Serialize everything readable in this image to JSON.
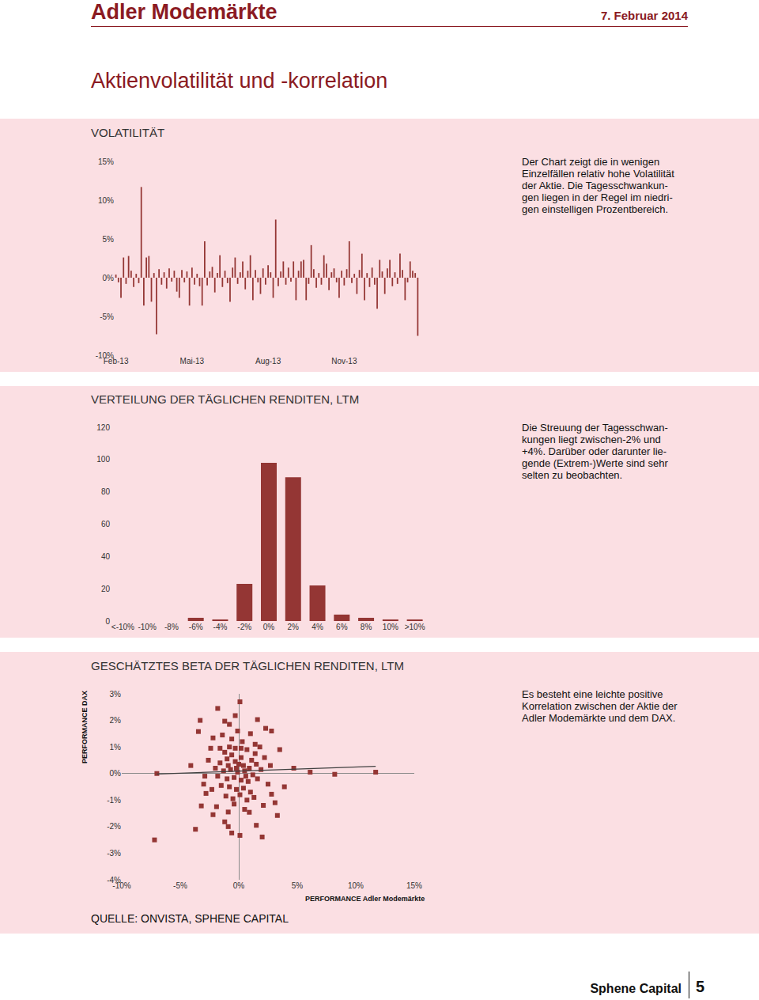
{
  "header": {
    "company": "Adler Modemärkte",
    "date": "7. Februar 2014"
  },
  "page_title": "Aktienvolatilität und -korrelation",
  "chart_data": [
    {
      "type": "bar",
      "title": "VOLATILITÄT",
      "annotation": [
        "Der Chart zeigt die in wenigen",
        "Einzelfällen relativ hohe Volatilität",
        "der Aktie. Die Tagesschwankun-",
        "gen liegen in der Regel im niedri-",
        "gen einstelligen Prozentbereich."
      ],
      "categories": [
        "Feb-13",
        null,
        null,
        null,
        null,
        null,
        null,
        null,
        null,
        null,
        null,
        null,
        null,
        null,
        null,
        null,
        null,
        null,
        null,
        null,
        null,
        null,
        null,
        null,
        null,
        null,
        null,
        null,
        null,
        null,
        "Mai-13",
        null,
        null,
        null,
        null,
        null,
        null,
        null,
        null,
        null,
        null,
        null,
        null,
        null,
        null,
        null,
        null,
        null,
        null,
        null,
        null,
        null,
        null,
        null,
        null,
        null,
        null,
        null,
        null,
        null,
        "Aug-13",
        null,
        null,
        null,
        null,
        null,
        null,
        null,
        null,
        null,
        null,
        null,
        null,
        null,
        null,
        null,
        null,
        null,
        null,
        null,
        null,
        null,
        null,
        null,
        null,
        null,
        null,
        null,
        null,
        null,
        "Nov-13",
        null,
        null,
        null,
        null,
        null,
        null,
        null,
        null,
        null,
        null,
        null,
        null,
        null,
        null,
        null,
        null,
        null,
        null,
        null,
        null,
        null,
        null,
        null,
        null,
        null,
        null,
        null,
        null,
        null
      ],
      "values": [
        0.4,
        -0.6,
        -2.6,
        2.6,
        -0.8,
        2.8,
        0.9,
        -1.2,
        0.5,
        -0.7,
        11.7,
        -3.6,
        2.6,
        2.8,
        -3.1,
        0.6,
        -7.3,
        1.1,
        -0.9,
        0.7,
        -1.4,
        1.2,
        -0.5,
        0.9,
        -1.8,
        -2.6,
        1.0,
        -0.6,
        0.8,
        -3.6,
        1.3,
        -0.9,
        0.5,
        -1.1,
        -3.6,
        4.7,
        -1.0,
        0.8,
        1.4,
        -1.9,
        0.6,
        2.9,
        -1.2,
        0.9,
        -0.7,
        -3.1,
        1.3,
        2.6,
        -0.8,
        0.7,
        2.1,
        -1.5,
        0.9,
        2.9,
        -2.9,
        1.0,
        -0.6,
        -2.1,
        1.2,
        -0.9,
        1.6,
        0.7,
        -2.6,
        7.5,
        -1.1,
        0.8,
        2.1,
        -0.9,
        1.3,
        -0.5,
        2.1,
        -2.9,
        0.9,
        2.1,
        2.3,
        -2.9,
        -0.8,
        4.2,
        1.1,
        -1.3,
        0.6,
        -0.9,
        2.9,
        1.8,
        -1.6,
        0.7,
        1.2,
        -0.6,
        -2.6,
        0.9,
        -1.0,
        1.1,
        4.7,
        -0.7,
        0.5,
        -2.1,
        1.0,
        3.1,
        -2.9,
        0.6,
        -1.2,
        1.3,
        -0.9,
        -4.0,
        2.3,
        0.8,
        -2.1,
        1.2,
        2.3,
        -1.1,
        0.7,
        -0.8,
        3.1,
        1.0,
        -2.9,
        -0.6,
        2.1,
        0.9,
        0.6,
        -7.5
      ],
      "color": "#943634",
      "ylim": [
        -10,
        15
      ],
      "yticks": [
        {
          "value": -10,
          "label": "-10%"
        },
        {
          "value": -5,
          "label": "-5%"
        },
        {
          "value": 0,
          "label": "0%"
        },
        {
          "value": 5,
          "label": "5%"
        },
        {
          "value": 10,
          "label": "10%"
        },
        {
          "value": 15,
          "label": "15%"
        }
      ],
      "grid": false
    },
    {
      "type": "bar",
      "title": "VERTEILUNG DER TÄGLICHEN RENDITEN, LTM",
      "annotation": [
        "Die Streuung der Tagesschwan-",
        "kungen liegt zwischen-2% und",
        "+4%. Darüber oder darunter lie-",
        "gende (Extrem-)Werte sind sehr",
        "selten zu beobachten."
      ],
      "categories": [
        "<-10%",
        "-10%",
        "-8%",
        "-6%",
        "-4%",
        "-2%",
        "0%",
        "2%",
        "4%",
        "6%",
        "8%",
        "10%",
        ">10%"
      ],
      "values": [
        0,
        0,
        0,
        2,
        1,
        23,
        98,
        89,
        22,
        4,
        2,
        1,
        1
      ],
      "color": "#943634",
      "ylim": [
        0,
        120
      ],
      "yticks": [
        0,
        20,
        40,
        60,
        80,
        100,
        120
      ],
      "grid": false
    },
    {
      "type": "scatter",
      "title": "GESCHÄTZTES BETA DER TÄGLICHEN RENDITEN, LTM",
      "annotation": [
        "Es besteht eine leichte positive",
        "Korrelation zwischen der Aktie der",
        "Adler Modemärkte und dem DAX."
      ],
      "x_label": "PERFORMANCE Adler Modemärkte",
      "y_label": "PERFORMANCE DAX",
      "xlim": [
        -10,
        15
      ],
      "xticks": [
        {
          "value": -10,
          "label": "-10%"
        },
        {
          "value": -5,
          "label": "-5%"
        },
        {
          "value": 0,
          "label": "0%"
        },
        {
          "value": 5,
          "label": "5%"
        },
        {
          "value": 10,
          "label": "10%"
        },
        {
          "value": 15,
          "label": "15%"
        }
      ],
      "ylim": [
        -4,
        3
      ],
      "yticks": [
        {
          "value": -4,
          "label": "-4%"
        },
        {
          "value": -3,
          "label": "-3%"
        },
        {
          "value": -2,
          "label": "-2%"
        },
        {
          "value": -1,
          "label": "-1%"
        },
        {
          "value": 0,
          "label": "0%"
        },
        {
          "value": 1,
          "label": "1%"
        },
        {
          "value": 2,
          "label": "2%"
        },
        {
          "value": 3,
          "label": "3%"
        }
      ],
      "grid": false,
      "series": [
        {
          "type": "scatter",
          "marker": "square",
          "color": "#943634",
          "x": [
            -7.0,
            -7.2,
            -4.1,
            -3.7,
            6.1,
            8.2,
            11.7,
            4.7,
            0.1,
            -1.8,
            -3.3,
            -1.2,
            -0.8,
            1.6,
            2.3,
            2.8,
            -0.3,
            -3.45,
            -2.2,
            -0.8,
            -0.3,
            1.4,
            1.8,
            3.5,
            -2.4,
            -3.2,
            -2.8,
            3.1,
            3.3,
            2.8,
            2.0,
            -0.6,
            0.1,
            -1.2,
            -2.2,
            0.9,
            -0.9,
            1.5,
            -3.0,
            3.9,
            -1.2,
            -0.6,
            0.2,
            0.7,
            1.1,
            -1.6,
            -0.9,
            -0.3,
            0.4,
            0.9,
            1.5,
            -2.0,
            -1.3,
            -0.7,
            -0.1,
            0.5,
            1.2,
            -1.8,
            -1.0,
            -0.4,
            0.2,
            0.8,
            1.6,
            -1.5,
            -0.8,
            -0.2,
            0.4,
            1.0,
            -1.1,
            -0.5,
            0.1,
            0.7,
            1.3,
            -2.3,
            2.2,
            2.5,
            -2.6,
            -0.6,
            0.3,
            -1.4,
            1.0,
            -0.1,
            2.1,
            -1.9,
            0.5,
            -0.4,
            -1.0,
            0.0,
            0.6,
            -0.2,
            1.9,
            -2.9,
            2.7,
            -0.9,
            1.4,
            -1.6,
            0.2
          ],
          "values": [
            0.0,
            -2.5,
            0.3,
            -2.1,
            0.05,
            -0.03,
            0.05,
            0.2,
            2.7,
            2.45,
            2.0,
            1.97,
            1.85,
            2.03,
            1.7,
            1.6,
            2.18,
            1.58,
            1.34,
            1.0,
            0.95,
            1.1,
            1.0,
            0.9,
            0.95,
            -1.22,
            -0.75,
            -1.1,
            -1.58,
            -0.78,
            -2.39,
            -2.24,
            -2.33,
            -1.82,
            -1.55,
            -1.46,
            -2.0,
            -1.95,
            -0.4,
            -0.5,
            0.8,
            0.7,
            0.6,
            0.9,
            0.5,
            0.4,
            0.3,
            0.45,
            0.3,
            0.2,
            0.35,
            0.2,
            0.1,
            0.15,
            0.05,
            0.1,
            -0.05,
            -0.1,
            -0.2,
            -0.15,
            -0.25,
            -0.3,
            -0.2,
            -0.45,
            -0.5,
            -0.6,
            -0.55,
            -0.7,
            -0.85,
            -0.95,
            -0.8,
            -1.0,
            -0.9,
            -0.6,
            0.6,
            -0.4,
            0.5,
            1.3,
            1.2,
            1.45,
            1.5,
            1.6,
            -1.2,
            -1.25,
            -1.35,
            -1.15,
            0.55,
            0.35,
            -0.1,
            0.2,
            0.15,
            -0.1,
            0.3,
            -1.45,
            0.75,
            0.95,
            0.95
          ]
        },
        {
          "type": "line",
          "line_style": "solid",
          "color": "#404040",
          "x": [
            -7.0,
            11.7
          ],
          "values": [
            -0.02,
            0.27
          ]
        }
      ]
    }
  ],
  "source": "QUELLE: ONVISTA, SPHENE CAPITAL",
  "footer": {
    "brand": "Sphene Capital",
    "page": 5
  }
}
